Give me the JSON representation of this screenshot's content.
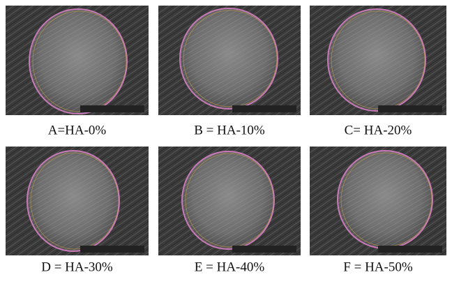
{
  "panels": [
    {
      "caption": "A=HA-0%"
    },
    {
      "caption": "B = HA-10%"
    },
    {
      "caption": "C= HA-20%"
    },
    {
      "caption": "D = HA-30%"
    },
    {
      "caption": "E = HA-40%"
    },
    {
      "caption": "F = HA-50%"
    }
  ]
}
